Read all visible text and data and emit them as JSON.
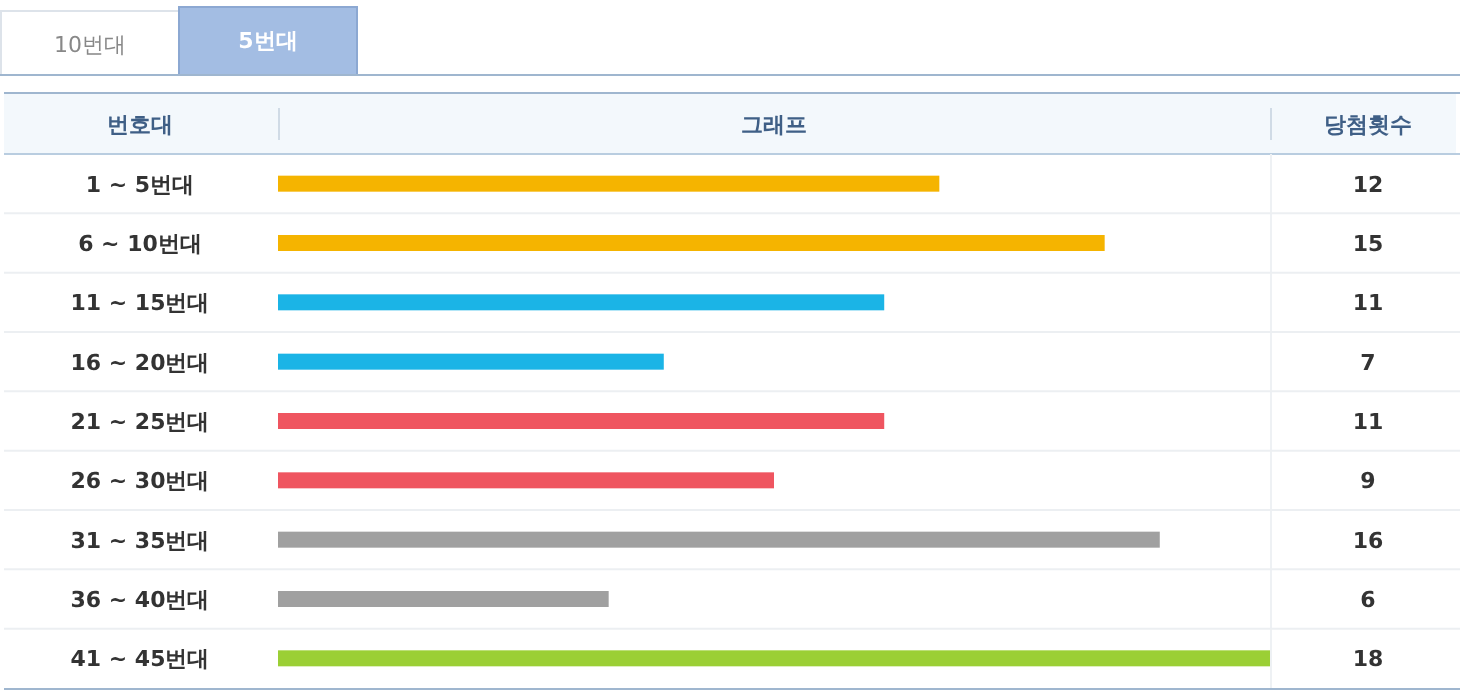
{
  "chart_data": {
    "type": "bar",
    "orientation": "horizontal",
    "ylabel": "번호대",
    "xlabel": "그래프",
    "y2label": "당첨횟수",
    "annotations": [
      "10번대",
      "5번대"
    ],
    "categories": [
      "1 ~ 5번대",
      "6 ~ 10번대",
      "11 ~ 15번대",
      "16 ~ 20번대",
      "21 ~ 25번대",
      "26 ~ 30번대",
      "31 ~ 35번대",
      "36 ~ 40번대",
      "41 ~ 45번대"
    ],
    "values": [
      12,
      15,
      11,
      7,
      11,
      9,
      16,
      6,
      18
    ],
    "colors": [
      "#f5b400",
      "#f5b400",
      "#1bb4e6",
      "#1bb4e6",
      "#ef5560",
      "#ef5560",
      "#a0a0a0",
      "#a0a0a0",
      "#9bcf35"
    ],
    "xlim": [
      0,
      18
    ],
    "data_labels": true,
    "tick_labels": "y"
  }
}
